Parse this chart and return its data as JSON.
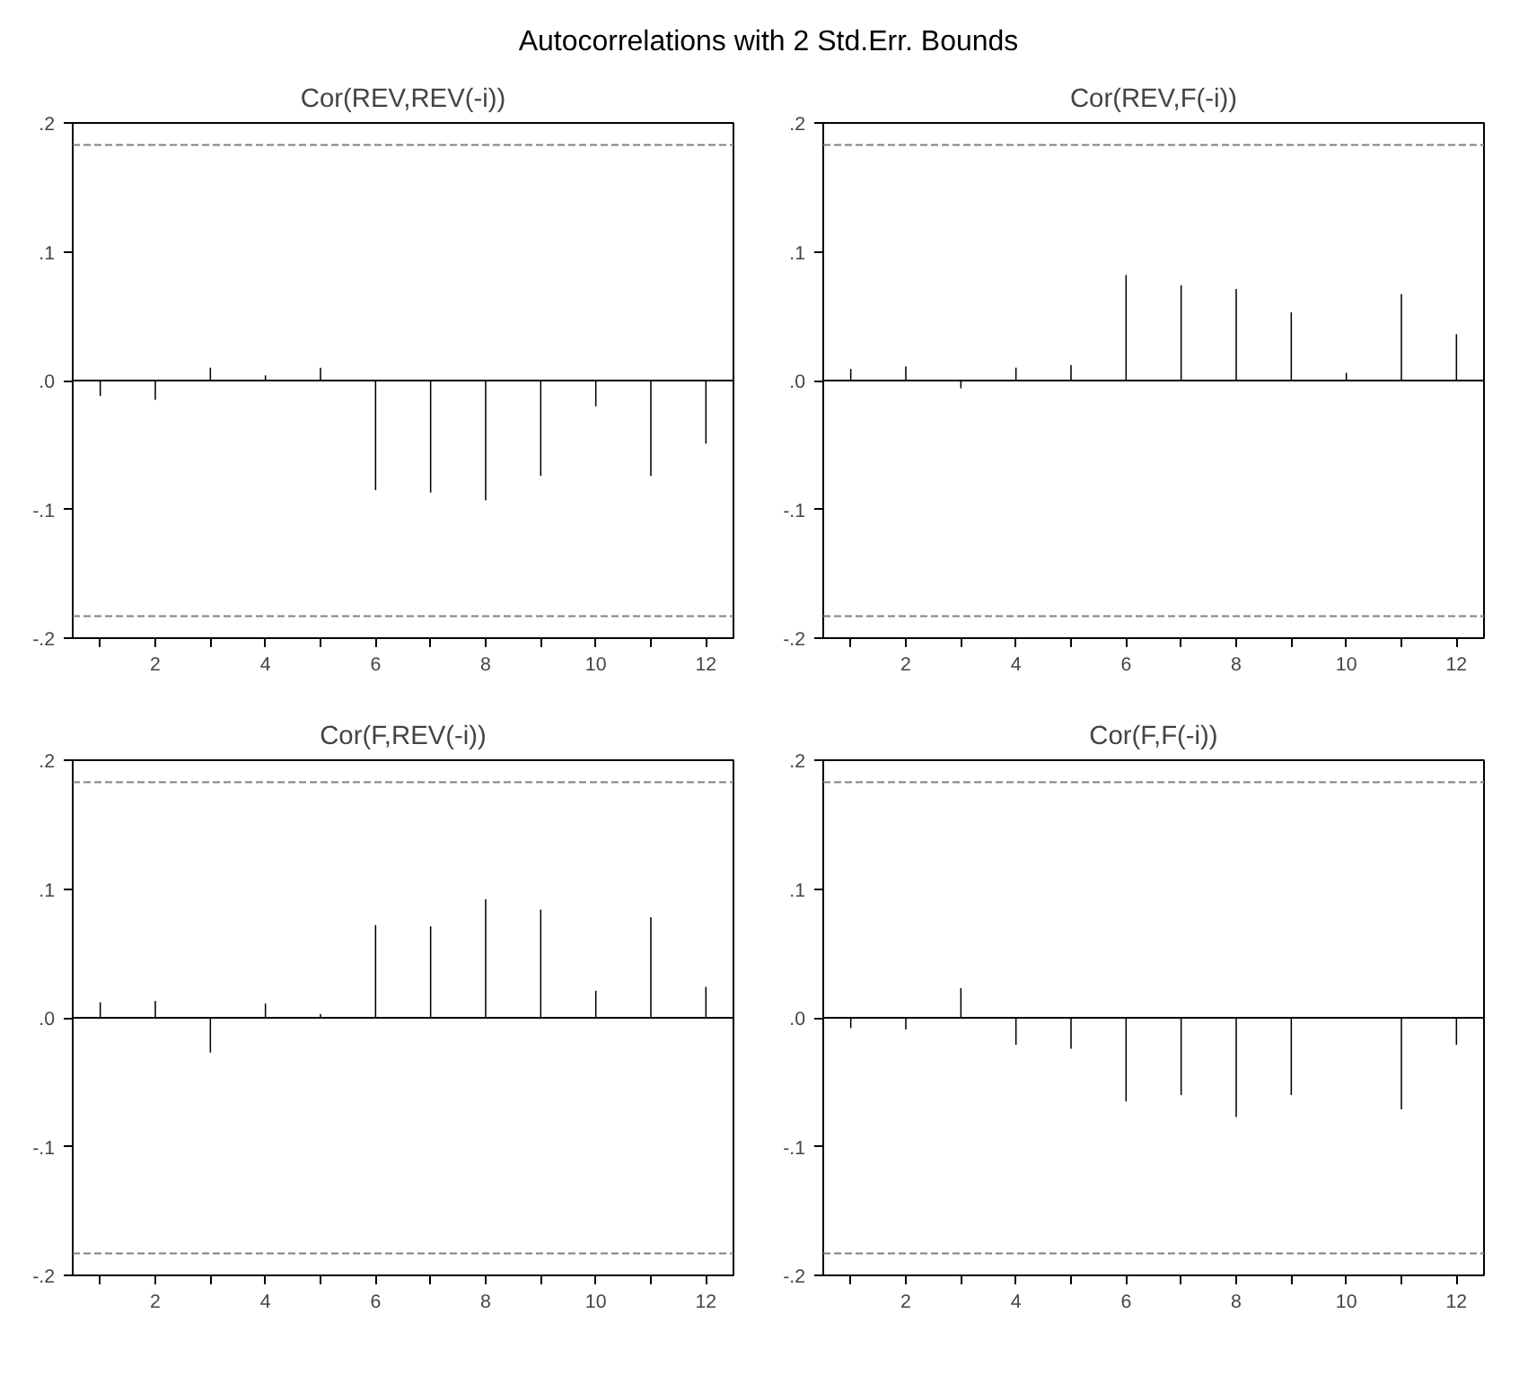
{
  "chart_data": [
    {
      "type": "bar",
      "title": "Cor(REV,REV(-i))",
      "annotations": [
        "Autocorrelations with 2 Std.Err. Bounds"
      ],
      "x": [
        1,
        2,
        3,
        4,
        5,
        6,
        7,
        8,
        9,
        10,
        11,
        12
      ],
      "color": "#000000",
      "values": [
        -0.012,
        -0.015,
        0.01,
        0.004,
        0.01,
        -0.085,
        -0.087,
        -0.093,
        -0.074,
        -0.02,
        -0.074,
        -0.049
      ],
      "xlim": [
        0.5,
        12.5
      ],
      "ylim": [
        -0.2,
        0.2
      ],
      "yticks": [
        {
          "value": 0.2,
          "label": ".2"
        },
        {
          "value": 0.1,
          "label": ".1"
        },
        {
          "value": 0,
          "label": ".0"
        },
        {
          "value": -0.1,
          "label": "-.1"
        },
        {
          "value": -0.2,
          "label": "-.2"
        }
      ],
      "xticks": [
        {
          "value": 1,
          "label": null
        },
        2,
        {
          "value": 3,
          "label": null
        },
        4,
        {
          "value": 5,
          "label": null
        },
        6,
        {
          "value": 7,
          "label": null
        },
        8,
        {
          "value": 9,
          "label": null
        },
        10,
        {
          "value": 11,
          "label": null
        },
        12
      ],
      "ref_lines": [
        {
          "axis": "y",
          "value": 0.183,
          "color": "#808080",
          "line_style": "dashed"
        },
        {
          "axis": "y",
          "value": -0.183,
          "color": "#808080",
          "line_style": "dashed"
        },
        {
          "axis": "y",
          "value": 0,
          "color": "#000000",
          "line_style": "solid"
        }
      ],
      "grid": false
    },
    {
      "type": "bar",
      "title": "Cor(REV,F(-i))",
      "x": [
        1,
        2,
        3,
        4,
        5,
        6,
        7,
        8,
        9,
        10,
        11,
        12
      ],
      "color": "#000000",
      "values": [
        0.009,
        0.011,
        -0.006,
        0.01,
        0.012,
        0.082,
        0.074,
        0.071,
        0.053,
        0.006,
        0.067,
        0.036
      ],
      "xlim": [
        0.5,
        12.5
      ],
      "ylim": [
        -0.2,
        0.2
      ],
      "yticks": [
        {
          "value": 0.2,
          "label": ".2"
        },
        {
          "value": 0.1,
          "label": ".1"
        },
        {
          "value": 0,
          "label": ".0"
        },
        {
          "value": -0.1,
          "label": "-.1"
        },
        {
          "value": -0.2,
          "label": "-.2"
        }
      ],
      "xticks": [
        {
          "value": 1,
          "label": null
        },
        2,
        {
          "value": 3,
          "label": null
        },
        4,
        {
          "value": 5,
          "label": null
        },
        6,
        {
          "value": 7,
          "label": null
        },
        8,
        {
          "value": 9,
          "label": null
        },
        10,
        {
          "value": 11,
          "label": null
        },
        12
      ],
      "ref_lines": [
        {
          "axis": "y",
          "value": 0.183,
          "color": "#808080",
          "line_style": "dashed"
        },
        {
          "axis": "y",
          "value": -0.183,
          "color": "#808080",
          "line_style": "dashed"
        },
        {
          "axis": "y",
          "value": 0,
          "color": "#000000",
          "line_style": "solid"
        }
      ],
      "grid": false
    },
    {
      "type": "bar",
      "title": "Cor(F,REV(-i))",
      "x": [
        1,
        2,
        3,
        4,
        5,
        6,
        7,
        8,
        9,
        10,
        11,
        12
      ],
      "color": "#000000",
      "values": [
        0.012,
        0.013,
        -0.027,
        0.011,
        0.003,
        0.072,
        0.071,
        0.092,
        0.084,
        0.021,
        0.078,
        0.024
      ],
      "xlim": [
        0.5,
        12.5
      ],
      "ylim": [
        -0.2,
        0.2
      ],
      "yticks": [
        {
          "value": 0.2,
          "label": ".2"
        },
        {
          "value": 0.1,
          "label": ".1"
        },
        {
          "value": 0,
          "label": ".0"
        },
        {
          "value": -0.1,
          "label": "-.1"
        },
        {
          "value": -0.2,
          "label": "-.2"
        }
      ],
      "xticks": [
        {
          "value": 1,
          "label": null
        },
        2,
        {
          "value": 3,
          "label": null
        },
        4,
        {
          "value": 5,
          "label": null
        },
        6,
        {
          "value": 7,
          "label": null
        },
        8,
        {
          "value": 9,
          "label": null
        },
        10,
        {
          "value": 11,
          "label": null
        },
        12
      ],
      "ref_lines": [
        {
          "axis": "y",
          "value": 0.183,
          "color": "#808080",
          "line_style": "dashed"
        },
        {
          "axis": "y",
          "value": -0.183,
          "color": "#808080",
          "line_style": "dashed"
        },
        {
          "axis": "y",
          "value": 0,
          "color": "#000000",
          "line_style": "solid"
        }
      ],
      "grid": false
    },
    {
      "type": "bar",
      "title": "Cor(F,F(-i))",
      "x": [
        1,
        2,
        3,
        4,
        5,
        6,
        7,
        8,
        9,
        10,
        11,
        12
      ],
      "color": "#000000",
      "values": [
        -0.008,
        -0.009,
        0.023,
        -0.021,
        -0.024,
        -0.065,
        -0.06,
        -0.077,
        -0.06,
        0.0,
        -0.071,
        -0.021
      ],
      "xlim": [
        0.5,
        12.5
      ],
      "ylim": [
        -0.2,
        0.2
      ],
      "yticks": [
        {
          "value": 0.2,
          "label": ".2"
        },
        {
          "value": 0.1,
          "label": ".1"
        },
        {
          "value": 0,
          "label": ".0"
        },
        {
          "value": -0.1,
          "label": "-.1"
        },
        {
          "value": -0.2,
          "label": "-.2"
        }
      ],
      "xticks": [
        {
          "value": 1,
          "label": null
        },
        2,
        {
          "value": 3,
          "label": null
        },
        4,
        {
          "value": 5,
          "label": null
        },
        6,
        {
          "value": 7,
          "label": null
        },
        8,
        {
          "value": 9,
          "label": null
        },
        10,
        {
          "value": 11,
          "label": null
        },
        12
      ],
      "ref_lines": [
        {
          "axis": "y",
          "value": 0.183,
          "color": "#808080",
          "line_style": "dashed"
        },
        {
          "axis": "y",
          "value": -0.183,
          "color": "#808080",
          "line_style": "dashed"
        },
        {
          "axis": "y",
          "value": 0,
          "color": "#000000",
          "line_style": "solid"
        }
      ],
      "grid": false
    }
  ]
}
